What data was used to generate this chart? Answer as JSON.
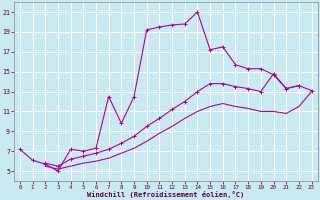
{
  "xlabel": "Windchill (Refroidissement éolien,°C)",
  "bg_color": "#c8eaf0",
  "grid_color": "#ffffff",
  "line_color": "#aa00aa",
  "xlim": [
    -0.5,
    23.5
  ],
  "ylim": [
    4.0,
    22.0
  ],
  "xticks": [
    0,
    1,
    2,
    3,
    4,
    5,
    6,
    7,
    8,
    9,
    10,
    11,
    12,
    13,
    14,
    15,
    16,
    17,
    18,
    19,
    20,
    21,
    22,
    23
  ],
  "yticks": [
    5,
    7,
    9,
    11,
    13,
    15,
    17,
    19,
    21
  ],
  "curve1_x": [
    0,
    1,
    2,
    3,
    4,
    5,
    6,
    7,
    8,
    9,
    10,
    11,
    12,
    13,
    14,
    15,
    16,
    17,
    18,
    19,
    20,
    21,
    22
  ],
  "curve1_y": [
    7.2,
    6.1,
    5.7,
    5.0,
    7.2,
    7.0,
    7.3,
    12.5,
    9.8,
    12.5,
    19.2,
    19.5,
    19.7,
    19.8,
    21.0,
    17.2,
    17.5,
    15.7,
    15.3,
    15.3,
    14.7,
    13.3,
    13.6
  ],
  "curve2_x": [
    2,
    3,
    4,
    5,
    6,
    7,
    8,
    9,
    10,
    11,
    12,
    13,
    14,
    15,
    16,
    17,
    18,
    19,
    20,
    21,
    22,
    23
  ],
  "curve2_y": [
    5.8,
    5.5,
    6.2,
    6.5,
    6.8,
    7.2,
    7.8,
    8.5,
    9.5,
    10.3,
    11.2,
    12.0,
    13.0,
    13.8,
    13.8,
    13.5,
    13.3,
    13.0,
    14.8,
    13.3,
    13.6,
    13.1
  ],
  "curve3_x": [
    2,
    3,
    4,
    5,
    6,
    7,
    8,
    9,
    10,
    11,
    12,
    13,
    14,
    15,
    16,
    17,
    18,
    19,
    20,
    21,
    22,
    23
  ],
  "curve3_y": [
    5.5,
    5.2,
    5.5,
    5.8,
    6.0,
    6.3,
    6.8,
    7.3,
    8.0,
    8.8,
    9.5,
    10.3,
    11.0,
    11.5,
    11.8,
    11.5,
    11.3,
    11.0,
    11.0,
    10.8,
    11.5,
    13.0
  ]
}
